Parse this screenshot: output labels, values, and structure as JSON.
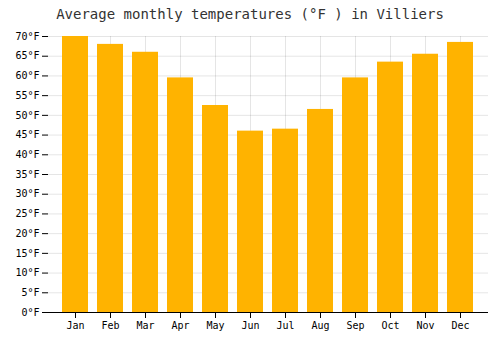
{
  "chart_data": {
    "type": "bar",
    "title": "Average monthly temperatures (°F ) in Villiers",
    "categories": [
      "Jan",
      "Feb",
      "Mar",
      "Apr",
      "May",
      "Jun",
      "Jul",
      "Aug",
      "Sep",
      "Oct",
      "Nov",
      "Dec"
    ],
    "values": [
      70,
      68,
      66,
      59.5,
      52.5,
      46,
      46.5,
      51.5,
      59.5,
      63.5,
      65.5,
      68.5
    ],
    "color": "#FFB300",
    "ylim": [
      0,
      70
    ],
    "yticks": [
      {
        "value": 0,
        "label": "0°F"
      },
      {
        "value": 5,
        "label": "5°F"
      },
      {
        "value": 10,
        "label": "10°F"
      },
      {
        "value": 15,
        "label": "15°F"
      },
      {
        "value": 20,
        "label": "20°F"
      },
      {
        "value": 25,
        "label": "25°F"
      },
      {
        "value": 30,
        "label": "30°F"
      },
      {
        "value": 35,
        "label": "35°F"
      },
      {
        "value": 40,
        "label": "40°F"
      },
      {
        "value": 45,
        "label": "45°F"
      },
      {
        "value": 50,
        "label": "50°F"
      },
      {
        "value": 55,
        "label": "55°F"
      },
      {
        "value": 60,
        "label": "60°F"
      },
      {
        "value": 65,
        "label": "65°F"
      },
      {
        "value": 70,
        "label": "70°F"
      }
    ],
    "grid": true
  }
}
